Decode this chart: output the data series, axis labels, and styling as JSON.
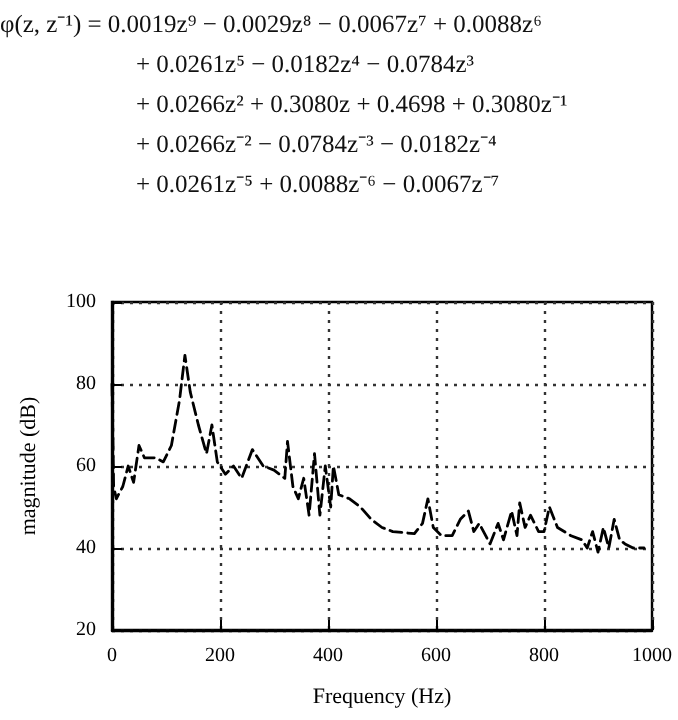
{
  "chart_data": {
    "type": "line",
    "xlabel": "Frequency (Hz)",
    "ylabel": "magnitude (dB)",
    "annotations": [
      "φ(z, z⁻¹) = 0.0019z⁹ − 0.0029z⁸ − 0.0067z⁷ + 0.0088z⁶",
      "+ 0.0261z⁵ − 0.0182z⁴ − 0.0784z³",
      "+ 0.0266z² + 0.3080z + 0.4698 + 0.3080z⁻¹",
      "+ 0.0266z⁻² − 0.0784z⁻³ − 0.0182z⁻⁴",
      "+ 0.0261z⁻⁵ + 0.0088z⁻⁶ − 0.0067z⁻⁷"
    ],
    "x": [
      0,
      3,
      8,
      20,
      30,
      40,
      50,
      60,
      80,
      95,
      110,
      125,
      135,
      145,
      160,
      175,
      185,
      195,
      210,
      225,
      240,
      260,
      280,
      300,
      320,
      325,
      335,
      345,
      355,
      365,
      375,
      385,
      395,
      405,
      410,
      420,
      440,
      460,
      480,
      500,
      520,
      560,
      575,
      585,
      595,
      610,
      630,
      645,
      660,
      670,
      680,
      700,
      715,
      725,
      740,
      750,
      755,
      765,
      775,
      790,
      800,
      810,
      825,
      850,
      870,
      880,
      890,
      900,
      910,
      920,
      930,
      940,
      950,
      965,
      985
    ],
    "series": [
      {
        "color": "#000000",
        "values": [
          80,
          55,
          52,
          55,
          60,
          56,
          65,
          62,
          62,
          61,
          65,
          76,
          87,
          78,
          70,
          63,
          70,
          61,
          58,
          60,
          57,
          64,
          60,
          59,
          57,
          66,
          55,
          52,
          57,
          48,
          63,
          48,
          60,
          50,
          60,
          53,
          52,
          50,
          47,
          45,
          44,
          43.5,
          46,
          52,
          45,
          43,
          43,
          47,
          49,
          44,
          46,
          41,
          46,
          42,
          49,
          43,
          51,
          45,
          48,
          44,
          44,
          50,
          45,
          43,
          42,
          40,
          44,
          39,
          45,
          40,
          47,
          42,
          41,
          40,
          40
        ]
      }
    ],
    "xlim": [
      0,
      1000
    ],
    "xticks": [
      0,
      200,
      400,
      600,
      800,
      1000
    ],
    "ylim": [
      20,
      100
    ],
    "yticks": [
      20,
      40,
      60,
      80,
      100
    ],
    "grid": true,
    "marker": "none",
    "line_style": "dashed"
  }
}
